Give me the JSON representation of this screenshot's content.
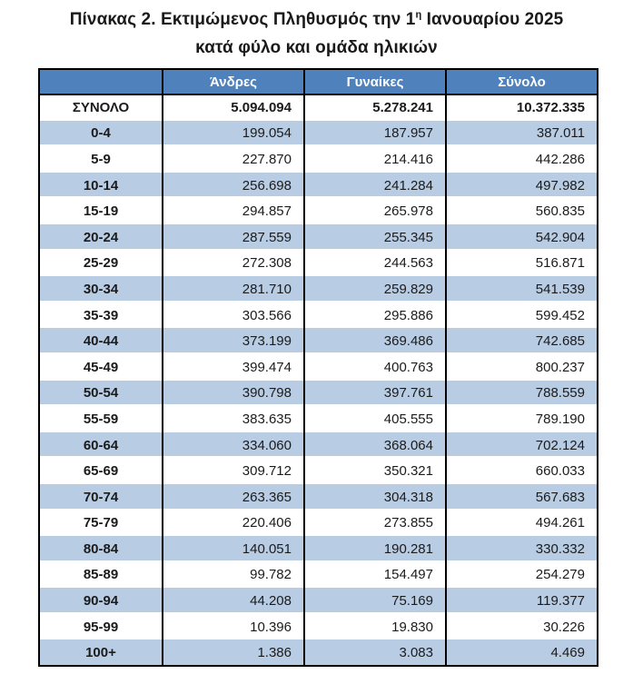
{
  "title": {
    "line1_prefix": "Πίνακας 2. Εκτιμώμενος Πληθυσμός την 1",
    "line1_superscript": "η",
    "line1_suffix": " Ιανουαρίου 2025",
    "line2": "κατά φύλο και ομάδα ηλικιών"
  },
  "table": {
    "columns": [
      "",
      "Άνδρες",
      "Γυναίκες",
      "Σύνολο"
    ],
    "rows": [
      {
        "label": "ΣΥΝΟΛΟ",
        "men": "5.094.094",
        "women": "5.278.241",
        "total": "10.372.335"
      },
      {
        "label": "0-4",
        "men": "199.054",
        "women": "187.957",
        "total": "387.011"
      },
      {
        "label": "5-9",
        "men": "227.870",
        "women": "214.416",
        "total": "442.286"
      },
      {
        "label": "10-14",
        "men": "256.698",
        "women": "241.284",
        "total": "497.982"
      },
      {
        "label": "15-19",
        "men": "294.857",
        "women": "265.978",
        "total": "560.835"
      },
      {
        "label": "20-24",
        "men": "287.559",
        "women": "255.345",
        "total": "542.904"
      },
      {
        "label": "25-29",
        "men": "272.308",
        "women": "244.563",
        "total": "516.871"
      },
      {
        "label": "30-34",
        "men": "281.710",
        "women": "259.829",
        "total": "541.539"
      },
      {
        "label": "35-39",
        "men": "303.566",
        "women": "295.886",
        "total": "599.452"
      },
      {
        "label": "40-44",
        "men": "373.199",
        "women": "369.486",
        "total": "742.685"
      },
      {
        "label": "45-49",
        "men": "399.474",
        "women": "400.763",
        "total": "800.237"
      },
      {
        "label": "50-54",
        "men": "390.798",
        "women": "397.761",
        "total": "788.559"
      },
      {
        "label": "55-59",
        "men": "383.635",
        "women": "405.555",
        "total": "789.190"
      },
      {
        "label": "60-64",
        "men": "334.060",
        "women": "368.064",
        "total": "702.124"
      },
      {
        "label": "65-69",
        "men": "309.712",
        "women": "350.321",
        "total": "660.033"
      },
      {
        "label": "70-74",
        "men": "263.365",
        "women": "304.318",
        "total": "567.683"
      },
      {
        "label": "75-79",
        "men": "220.406",
        "women": "273.855",
        "total": "494.261"
      },
      {
        "label": "80-84",
        "men": "140.051",
        "women": "190.281",
        "total": "330.332"
      },
      {
        "label": "85-89",
        "men": "99.782",
        "women": "154.497",
        "total": "254.279"
      },
      {
        "label": "90-94",
        "men": "44.208",
        "women": "75.169",
        "total": "119.377"
      },
      {
        "label": "95-99",
        "men": "10.396",
        "women": "19.830",
        "total": "30.226"
      },
      {
        "label": "100+",
        "men": "1.386",
        "women": "3.083",
        "total": "4.469"
      }
    ]
  },
  "colors": {
    "header_bg": "#4f81bd",
    "header_text": "#ffffff",
    "stripe_bg": "#b8cce4",
    "border": "#000000",
    "title_text": "#1a1a1a"
  }
}
